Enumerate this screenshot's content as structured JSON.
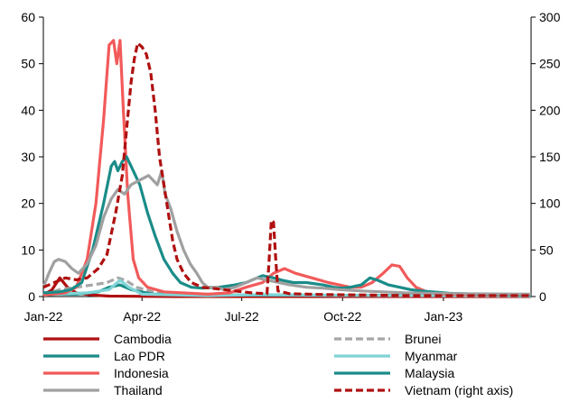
{
  "chart_data": {
    "type": "line",
    "title": "",
    "xlabel": "",
    "ylabel": "",
    "x_ticks": [
      "Jan-22",
      "Apr-22",
      "Jul-22",
      "Oct-22",
      "Jan-23"
    ],
    "x_tick_days": [
      0,
      90,
      181,
      273,
      365
    ],
    "x_range_days": [
      0,
      445
    ],
    "y_left": {
      "range": [
        0,
        60
      ],
      "ticks": [
        "0",
        "10",
        "20",
        "30",
        "40",
        "50",
        "60"
      ]
    },
    "y_right": {
      "range": [
        0,
        300
      ],
      "ticks": [
        "0",
        "50",
        "100",
        "150",
        "200",
        "250",
        "300"
      ]
    },
    "grid": false,
    "legend_placement": "bottom",
    "legend_order": [
      "Cambodia",
      "Brunei",
      "Lao PDR",
      "Myanmar",
      "Indonesia",
      "Malaysia",
      "Thailand",
      "Vietnam (right axis)"
    ],
    "series": [
      {
        "name": "Cambodia",
        "color": "#b01010",
        "dash": "solid",
        "axis": "left",
        "points": [
          [
            0,
            0.3
          ],
          [
            8,
            1.5
          ],
          [
            15,
            4
          ],
          [
            22,
            2
          ],
          [
            30,
            0.8
          ],
          [
            45,
            0.3
          ],
          [
            60,
            0.1
          ],
          [
            120,
            0
          ],
          [
            445,
            0
          ]
        ]
      },
      {
        "name": "Brunei",
        "color": "#a6a6a6",
        "dash": "dashed",
        "axis": "left",
        "points": [
          [
            0,
            0.4
          ],
          [
            15,
            1.5
          ],
          [
            30,
            2
          ],
          [
            45,
            2.5
          ],
          [
            58,
            3
          ],
          [
            68,
            4
          ],
          [
            75,
            3.5
          ],
          [
            85,
            2
          ],
          [
            100,
            1
          ],
          [
            130,
            0.5
          ],
          [
            180,
            0.3
          ],
          [
            240,
            0.3
          ],
          [
            300,
            0.2
          ],
          [
            445,
            0.2
          ]
        ]
      },
      {
        "name": "Lao PDR",
        "color": "#1a8c88",
        "dash": "solid",
        "axis": "left",
        "points": [
          [
            0,
            0.5
          ],
          [
            30,
            0.5
          ],
          [
            50,
            1
          ],
          [
            60,
            2
          ],
          [
            70,
            2.5
          ],
          [
            80,
            1.5
          ],
          [
            100,
            0.5
          ],
          [
            150,
            0.3
          ],
          [
            445,
            0.2
          ]
        ]
      },
      {
        "name": "Myanmar",
        "color": "#7fd4d6",
        "dash": "solid",
        "axis": "left",
        "points": [
          [
            0,
            0.3
          ],
          [
            20,
            0.6
          ],
          [
            40,
            0.8
          ],
          [
            60,
            1.5
          ],
          [
            70,
            3.5
          ],
          [
            78,
            2
          ],
          [
            90,
            0.5
          ],
          [
            150,
            0.2
          ],
          [
            200,
            0.4
          ],
          [
            240,
            0.3
          ],
          [
            445,
            0.1
          ]
        ]
      },
      {
        "name": "Indonesia",
        "color": "#f25a5a",
        "dash": "solid",
        "axis": "left",
        "points": [
          [
            0,
            0.3
          ],
          [
            20,
            0.8
          ],
          [
            30,
            2
          ],
          [
            40,
            8
          ],
          [
            48,
            20
          ],
          [
            55,
            38
          ],
          [
            60,
            54
          ],
          [
            64,
            55
          ],
          [
            67,
            50
          ],
          [
            70,
            55
          ],
          [
            73,
            40
          ],
          [
            77,
            22
          ],
          [
            82,
            8
          ],
          [
            87,
            4
          ],
          [
            95,
            2
          ],
          [
            110,
            1
          ],
          [
            150,
            0.5
          ],
          [
            170,
            0.8
          ],
          [
            185,
            2
          ],
          [
            200,
            3
          ],
          [
            210,
            5
          ],
          [
            220,
            6
          ],
          [
            230,
            5
          ],
          [
            245,
            4
          ],
          [
            260,
            3
          ],
          [
            270,
            2.5
          ],
          [
            280,
            2
          ],
          [
            290,
            2
          ],
          [
            300,
            3
          ],
          [
            310,
            5
          ],
          [
            318,
            6.8
          ],
          [
            325,
            6.5
          ],
          [
            332,
            4
          ],
          [
            340,
            2
          ],
          [
            350,
            1
          ],
          [
            365,
            0.5
          ],
          [
            400,
            0.3
          ],
          [
            445,
            0.3
          ]
        ]
      },
      {
        "name": "Malaysia",
        "color": "#1a8c88",
        "dash": "solid",
        "axis": "left",
        "points": [
          [
            0,
            0.8
          ],
          [
            15,
            1
          ],
          [
            25,
            1.5
          ],
          [
            35,
            3
          ],
          [
            45,
            10
          ],
          [
            55,
            20
          ],
          [
            62,
            28
          ],
          [
            65,
            29
          ],
          [
            68,
            27
          ],
          [
            72,
            29
          ],
          [
            76,
            30
          ],
          [
            80,
            28
          ],
          [
            88,
            24
          ],
          [
            95,
            18
          ],
          [
            102,
            13
          ],
          [
            110,
            8
          ],
          [
            118,
            5
          ],
          [
            125,
            3
          ],
          [
            135,
            2
          ],
          [
            145,
            1.8
          ],
          [
            160,
            2
          ],
          [
            175,
            2.5
          ],
          [
            185,
            3
          ],
          [
            195,
            4
          ],
          [
            200,
            4.5
          ],
          [
            210,
            4
          ],
          [
            218,
            3.5
          ],
          [
            228,
            3
          ],
          [
            240,
            3
          ],
          [
            255,
            2.5
          ],
          [
            265,
            2
          ],
          [
            272,
            1.8
          ],
          [
            280,
            2
          ],
          [
            290,
            2.5
          ],
          [
            298,
            4
          ],
          [
            305,
            3.5
          ],
          [
            315,
            2.5
          ],
          [
            325,
            2
          ],
          [
            335,
            1.5
          ],
          [
            345,
            1.2
          ],
          [
            355,
            1
          ],
          [
            370,
            0.7
          ],
          [
            395,
            0.5
          ],
          [
            420,
            0.4
          ],
          [
            445,
            0.3
          ]
        ]
      },
      {
        "name": "Thailand",
        "color": "#a0a0a0",
        "dash": "solid",
        "axis": "left",
        "points": [
          [
            0,
            2
          ],
          [
            5,
            5
          ],
          [
            10,
            7.5
          ],
          [
            14,
            8
          ],
          [
            20,
            7.5
          ],
          [
            26,
            6
          ],
          [
            32,
            5
          ],
          [
            40,
            7
          ],
          [
            48,
            11
          ],
          [
            55,
            17
          ],
          [
            62,
            21
          ],
          [
            68,
            23
          ],
          [
            74,
            22
          ],
          [
            80,
            24
          ],
          [
            88,
            25
          ],
          [
            96,
            26
          ],
          [
            104,
            24
          ],
          [
            108,
            27
          ],
          [
            111,
            22
          ],
          [
            116,
            19
          ],
          [
            122,
            14
          ],
          [
            128,
            10
          ],
          [
            134,
            7
          ],
          [
            140,
            5
          ],
          [
            145,
            3
          ],
          [
            150,
            2
          ],
          [
            158,
            2
          ],
          [
            165,
            1.5
          ],
          [
            175,
            2
          ],
          [
            185,
            3
          ],
          [
            195,
            4
          ],
          [
            205,
            3.5
          ],
          [
            215,
            3
          ],
          [
            225,
            2.5
          ],
          [
            240,
            2
          ],
          [
            255,
            1.8
          ],
          [
            270,
            1.5
          ],
          [
            290,
            1.2
          ],
          [
            310,
            1
          ],
          [
            330,
            0.8
          ],
          [
            350,
            0.7
          ],
          [
            380,
            0.6
          ],
          [
            445,
            0.5
          ]
        ]
      },
      {
        "name": "Vietnam (right axis)",
        "color": "#b01010",
        "dash": "dashed",
        "axis": "right",
        "points": [
          [
            0,
            10
          ],
          [
            10,
            15
          ],
          [
            20,
            20
          ],
          [
            30,
            18
          ],
          [
            40,
            20
          ],
          [
            50,
            30
          ],
          [
            58,
            45
          ],
          [
            66,
            90
          ],
          [
            72,
            130
          ],
          [
            76,
            180
          ],
          [
            80,
            230
          ],
          [
            83,
            255
          ],
          [
            86,
            272
          ],
          [
            90,
            268
          ],
          [
            94,
            260
          ],
          [
            98,
            240
          ],
          [
            102,
            200
          ],
          [
            106,
            150
          ],
          [
            110,
            120
          ],
          [
            114,
            90
          ],
          [
            118,
            60
          ],
          [
            122,
            40
          ],
          [
            128,
            25
          ],
          [
            135,
            15
          ],
          [
            145,
            10
          ],
          [
            160,
            8
          ],
          [
            175,
            6
          ],
          [
            190,
            4
          ],
          [
            204,
            3
          ],
          [
            206,
            40
          ],
          [
            208,
            82
          ],
          [
            210,
            80
          ],
          [
            212,
            40
          ],
          [
            214,
            6
          ],
          [
            225,
            3
          ],
          [
            260,
            2
          ],
          [
            300,
            1.5
          ],
          [
            340,
            1
          ],
          [
            445,
            1
          ]
        ]
      }
    ]
  }
}
